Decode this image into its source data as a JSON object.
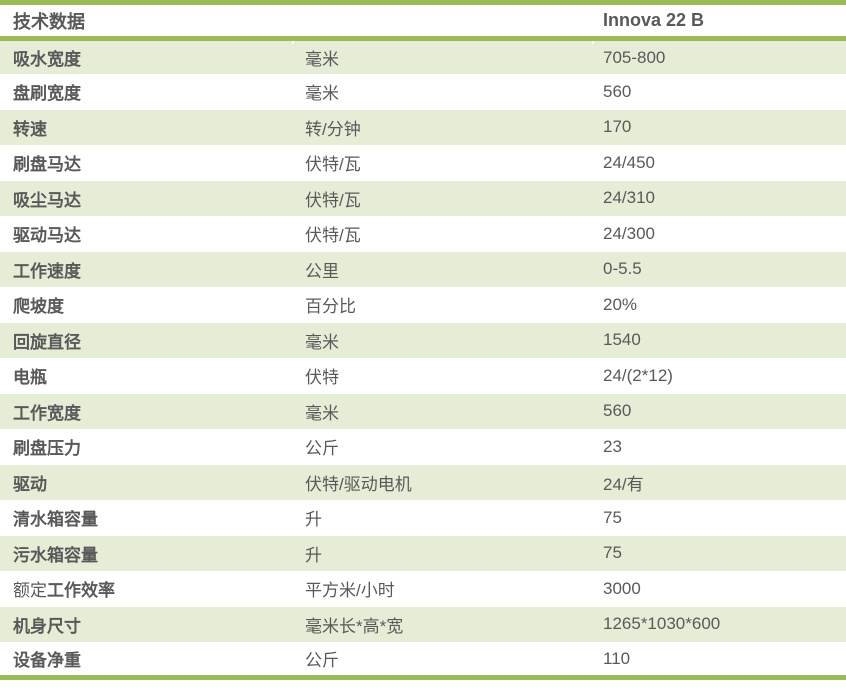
{
  "colors": {
    "accent_green": "#9BBB59",
    "band_green": "#E5EDD7",
    "text_gray": "#595959",
    "background": "#FFFFFF"
  },
  "table": {
    "header": {
      "col1": "技术数据",
      "col2": "",
      "col3": "Innova 22 B"
    },
    "rows": [
      {
        "pre": "",
        "label": "吸水宽度",
        "unit": "毫米",
        "value": "705-800"
      },
      {
        "pre": "",
        "label": "盘刷宽度",
        "unit": "毫米",
        "value": "560"
      },
      {
        "pre": "",
        "label": "转速",
        "unit": "转/分钟",
        "value": "170"
      },
      {
        "pre": "",
        "label": "刷盘马达",
        "unit": "伏特/瓦",
        "value": "24/450"
      },
      {
        "pre": "",
        "label": "吸尘马达",
        "unit": "伏特/瓦",
        "value": "24/310"
      },
      {
        "pre": "",
        "label": "驱动马达",
        "unit": "伏特/瓦",
        "value": "24/300"
      },
      {
        "pre": "",
        "label": "工作速度",
        "unit": "公里",
        "value": "0-5.5"
      },
      {
        "pre": "",
        "label": "爬坡度",
        "unit": "百分比",
        "value": "20%"
      },
      {
        "pre": "",
        "label": "回旋直径",
        "unit": "毫米",
        "value": "1540"
      },
      {
        "pre": "",
        "label": "电瓶",
        "unit": "伏特",
        "value": "24/(2*12)"
      },
      {
        "pre": "",
        "label": "工作宽度",
        "unit": "毫米",
        "value": "560"
      },
      {
        "pre": "",
        "label": "刷盘压力",
        "unit": "公斤",
        "value": "23"
      },
      {
        "pre": "",
        "label": "驱动",
        "unit": "伏特/驱动电机",
        "value": "24/有"
      },
      {
        "pre": "",
        "label": "清水箱容量",
        "unit": "升",
        "value": "75"
      },
      {
        "pre": "",
        "label": "污水箱容量",
        "unit": "升",
        "value": "75"
      },
      {
        "pre": "额定",
        "label": "工作效率",
        "unit": "平方米/小时",
        "value": "3000"
      },
      {
        "pre": "",
        "label": "机身尺寸",
        "unit": "毫米长*高*宽",
        "value": "1265*1030*600"
      },
      {
        "pre": "",
        "label": "设备净重",
        "unit": "公斤",
        "value": "110"
      }
    ]
  }
}
